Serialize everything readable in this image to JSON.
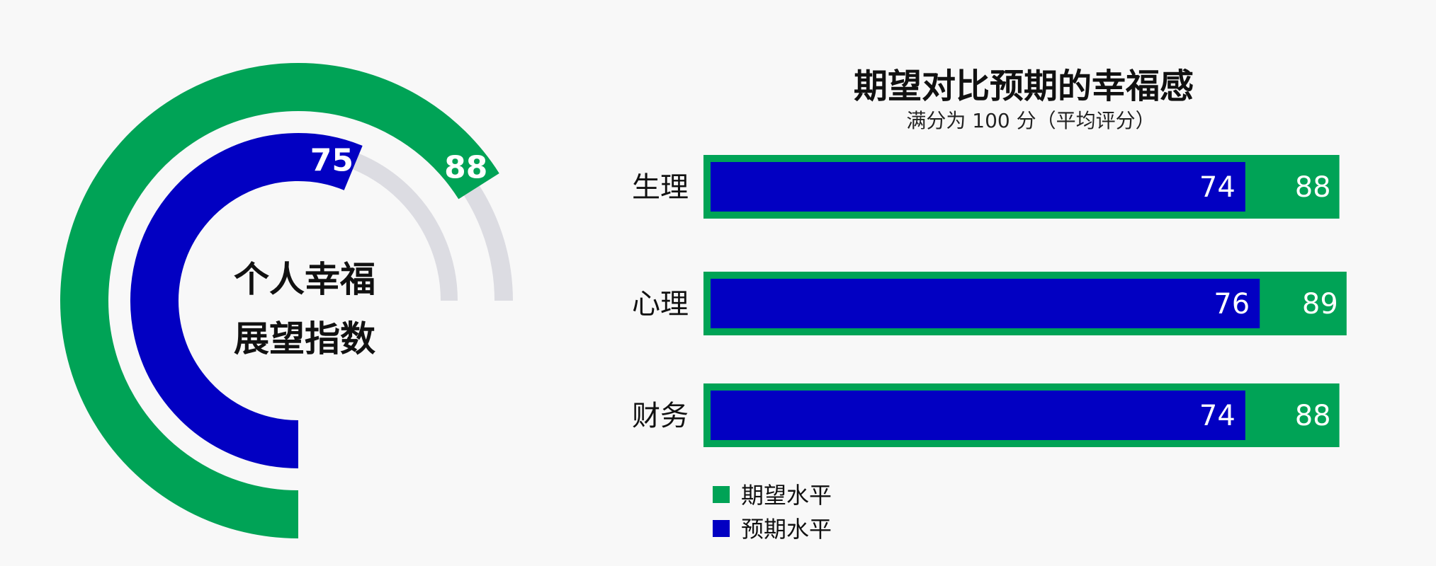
{
  "colors": {
    "expected": "#00a356",
    "anticipated": "#0200c2",
    "track": "#dcdce2",
    "background": "#f8f8f8"
  },
  "chart_data": [
    {
      "type": "radial-bar",
      "center_label": [
        "个人幸福",
        "展望指数"
      ],
      "max": 100,
      "series": [
        {
          "name": "期望水平",
          "value": 88
        },
        {
          "name": "预期水平",
          "value": 75
        }
      ]
    },
    {
      "type": "bar",
      "orientation": "horizontal",
      "title": "期望对比预期的幸福感",
      "subtitle": "满分为 100 分（平均评分）",
      "categories": [
        "生理",
        "心理",
        "财务"
      ],
      "xlim": [
        0,
        100
      ],
      "series": [
        {
          "name": "期望水平",
          "values": [
            88,
            89,
            88
          ]
        },
        {
          "name": "预期水平",
          "values": [
            74,
            76,
            74
          ]
        }
      ],
      "legend": {
        "position": "bottom-left",
        "entries": [
          "期望水平",
          "预期水平"
        ]
      }
    }
  ]
}
